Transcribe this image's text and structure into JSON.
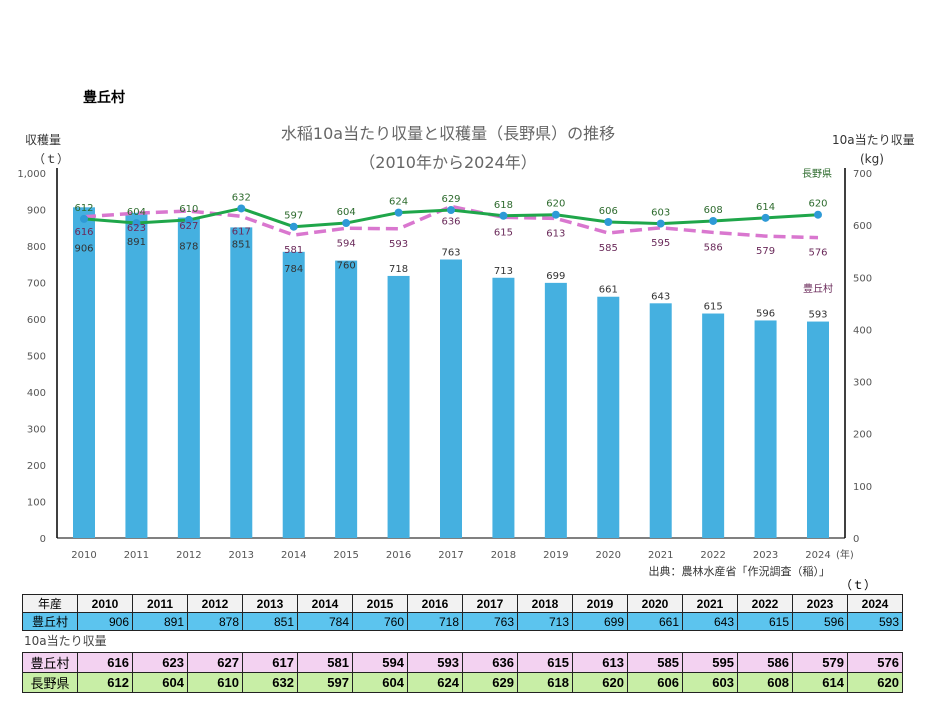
{
  "page_title": "豊丘村",
  "chart_data": {
    "type": "bar+line",
    "title": "水稲10a当たり収量と収穫量（長野県）の推移",
    "subtitle": "（2010年から2024年）",
    "ylabel_left": "収穫量",
    "ylabel_left_unit": "（ｔ）",
    "ylabel_right": "10a当たり収量",
    "ylabel_right_unit": "(kg)",
    "x_unit": "(年)",
    "ylim_left": [
      0,
      1000
    ],
    "ylim_right": [
      0,
      700
    ],
    "yticks_left": [
      "0",
      "100",
      "200",
      "300",
      "400",
      "500",
      "600",
      "700",
      "800",
      "900",
      "1,000"
    ],
    "yticks_right": [
      "0",
      "100",
      "200",
      "300",
      "400",
      "500",
      "600",
      "700"
    ],
    "categories": [
      "2010",
      "2011",
      "2012",
      "2013",
      "2014",
      "2015",
      "2016",
      "2017",
      "2018",
      "2019",
      "2020",
      "2021",
      "2022",
      "2023",
      "2024"
    ],
    "series": [
      {
        "name": "豊丘村",
        "kind": "bar",
        "axis": "left",
        "color": "#45b0e0",
        "values": [
          906,
          891,
          878,
          851,
          784,
          760,
          718,
          763,
          713,
          699,
          661,
          643,
          615,
          596,
          593
        ]
      },
      {
        "name": "長野県",
        "kind": "line",
        "axis": "right",
        "color": "#1fa64a",
        "marker": "#2e9ad6",
        "values": [
          612,
          604,
          610,
          632,
          597,
          604,
          624,
          629,
          618,
          620,
          606,
          603,
          608,
          614,
          620
        ]
      },
      {
        "name": "豊丘村",
        "kind": "dashed-line",
        "axis": "right",
        "color": "#d977cf",
        "values": [
          616,
          623,
          627,
          617,
          581,
          594,
          593,
          636,
          615,
          613,
          585,
          595,
          586,
          579,
          576
        ]
      }
    ],
    "source": "出典：農林水産省「作況調査（稲）」"
  },
  "table": {
    "unit": "（ｔ）",
    "header_label": "年産",
    "harvest_label": "豊丘村",
    "section_label": "10a当たり収量",
    "yield_rows": [
      {
        "label": "豊丘村"
      },
      {
        "label": "長野県"
      }
    ]
  }
}
